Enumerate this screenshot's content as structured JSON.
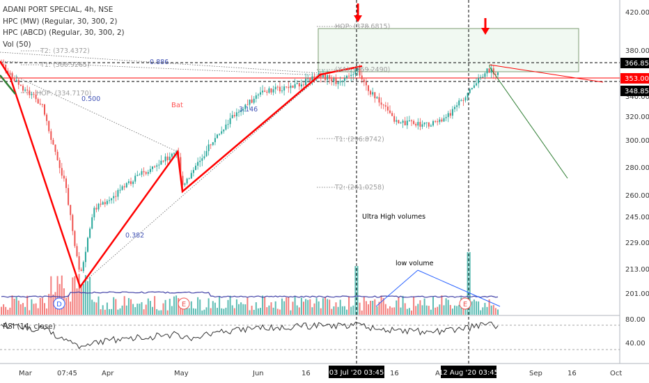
{
  "header": {
    "symbol": "ADANI PORT SPECIAL, 4h, NSE",
    "indicators": [
      "HPC (MW) (Regular, 30, 300, 2)",
      "HPC (ABCD) (Regular, 30, 300, 2)",
      "Vol (50)"
    ]
  },
  "rsi_label": "RSI (14, close)",
  "chart_data": {
    "type": "candlestick",
    "price_axis": {
      "ticks": [
        "420.00",
        "380.00",
        "340.00",
        "320.00",
        "300.00",
        "280.00",
        "260.00",
        "245.00",
        "229.00",
        "213.00",
        "201.00"
      ],
      "markers": [
        {
          "label": "366.85",
          "color": "#000000",
          "text_color": "#ffffff"
        },
        {
          "label": "353.00",
          "color": "#ff0000",
          "text_color": "#ffffff"
        },
        {
          "label": "348.85",
          "color": "#000000",
          "text_color": "#ffffff"
        }
      ]
    },
    "rsi_axis": {
      "ticks": [
        "80.00",
        "40.00"
      ],
      "bands": [
        70,
        30
      ]
    },
    "time_axis": {
      "ticks": [
        "Mar",
        "07:45",
        "Apr",
        "May",
        "Jun",
        "16",
        "03 Jul '20  03:45",
        "16",
        "Au",
        "12 Aug '20  03:45",
        "Sep",
        "16",
        "Oct"
      ],
      "highlighted": [
        "03 Jul '20  03:45",
        "12 Aug '20  03:45"
      ]
    },
    "pattern_labels": [
      {
        "text": "HOP: (378.6815)",
        "color": "#9e9e9e"
      },
      {
        "text": "(XA): (359.2490)",
        "color": "#9e9e9e"
      },
      {
        "text": "T1: (296.8742)",
        "color": "#9e9e9e"
      },
      {
        "text": "T2: (261.0258)",
        "color": "#9e9e9e"
      },
      {
        "text": "T2: (373.4372)",
        "color": "#9e9e9e"
      },
      {
        "text": "T1: (360.9265)",
        "color": "#9e9e9e"
      },
      {
        "text": "HOP: (334.7170)",
        "color": "#9e9e9e"
      },
      {
        "text": "0.886",
        "color": "#3f51b5"
      },
      {
        "text": "0.500",
        "color": "#3f51b5"
      },
      {
        "text": "0.382",
        "color": "#3f51b5"
      },
      {
        "text": "3.146",
        "color": "#3f51b5"
      },
      {
        "text": "Bat",
        "color": "#ff5252"
      }
    ],
    "annotations": [
      "Ultra High volumes",
      "low volume"
    ],
    "pattern_points": [
      "D",
      "E",
      "E"
    ],
    "colors": {
      "up": "#26a69a",
      "down": "#ef5350",
      "pattern": "#ff0000",
      "volume_ma": "#3f3fa6",
      "rsi": "#333333"
    }
  }
}
